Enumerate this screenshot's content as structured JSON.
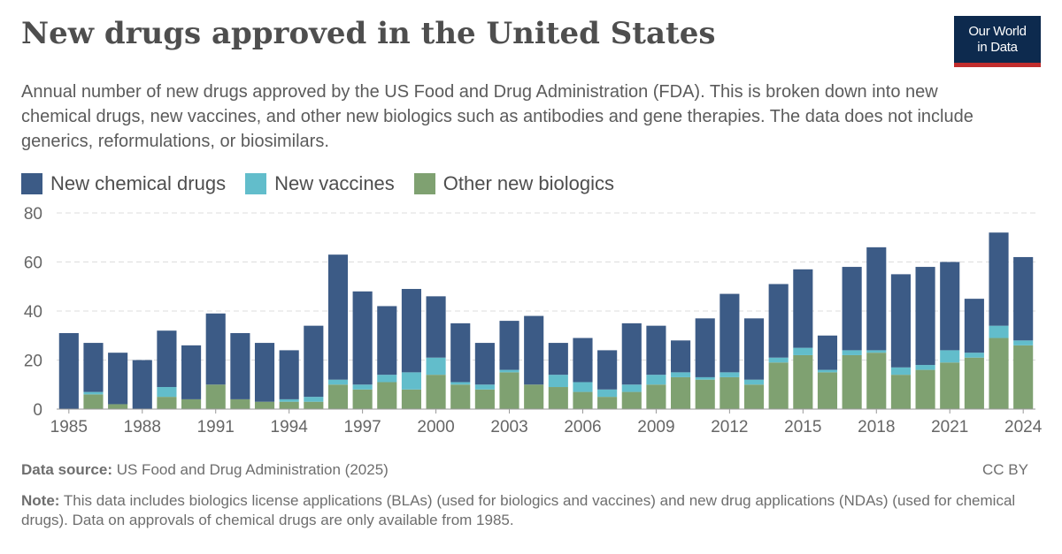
{
  "header": {
    "title": "New drugs approved in the United States",
    "subtitle": "Annual number of new drugs approved by the US Food and Drug Administration (FDA). This is broken down into new chemical drugs, new vaccines, and other new biologics such as antibodies and gene therapies. The data does not include generics, reformulations, or biosimilars.",
    "logo_line1": "Our World",
    "logo_line2": "in Data"
  },
  "footer": {
    "source_label": "Data source:",
    "source_text": "US Food and Drug Administration (2025)",
    "license": "CC BY",
    "note_label": "Note:",
    "note_text": "This data includes biologics license applications (BLAs) (used for biologics and vaccines) and new drug applications (NDAs) (used for chemical drugs). Data on approvals of chemical drugs are only available from 1985."
  },
  "colors": {
    "chemical": "#3c5b86",
    "vaccines": "#62bdcb",
    "biologics": "#7fa171",
    "grid": "#dddddd",
    "axis_text": "#666666"
  },
  "chart_data": {
    "type": "bar",
    "stacked": true,
    "x": [
      1985,
      1986,
      1987,
      1988,
      1989,
      1990,
      1991,
      1992,
      1993,
      1994,
      1995,
      1996,
      1997,
      1998,
      1999,
      2000,
      2001,
      2002,
      2003,
      2004,
      2005,
      2006,
      2007,
      2008,
      2009,
      2010,
      2011,
      2012,
      2013,
      2014,
      2015,
      2016,
      2017,
      2018,
      2019,
      2020,
      2021,
      2022,
      2023,
      2024
    ],
    "x_ticks": [
      "1985",
      "1988",
      "1991",
      "1994",
      "1997",
      "2000",
      "2003",
      "2006",
      "2009",
      "2012",
      "2015",
      "2018",
      "2021",
      "2024"
    ],
    "y_ticks": [
      "0",
      "20",
      "40",
      "60",
      "80"
    ],
    "ylim": [
      0,
      80
    ],
    "grid": true,
    "legend_position": "top-left",
    "series": [
      {
        "name": "Other new biologics",
        "key": "biologics",
        "values": [
          0,
          6,
          2,
          0,
          5,
          4,
          10,
          4,
          3,
          3,
          3,
          10,
          8,
          11,
          8,
          14,
          10,
          8,
          15,
          10,
          9,
          7,
          5,
          7,
          10,
          13,
          12,
          13,
          10,
          19,
          22,
          15,
          22,
          23,
          14,
          16,
          19,
          21,
          29,
          26
        ]
      },
      {
        "name": "New vaccines",
        "key": "vaccines",
        "values": [
          0,
          1,
          0,
          0,
          4,
          0,
          0,
          0,
          0,
          1,
          2,
          2,
          2,
          3,
          7,
          7,
          1,
          2,
          1,
          0,
          5,
          4,
          3,
          3,
          4,
          2,
          1,
          2,
          2,
          2,
          3,
          1,
          2,
          1,
          3,
          2,
          5,
          2,
          5,
          2
        ]
      },
      {
        "name": "New chemical drugs",
        "key": "chemical",
        "values": [
          31,
          20,
          21,
          20,
          23,
          22,
          29,
          27,
          24,
          20,
          29,
          51,
          38,
          28,
          34,
          25,
          24,
          17,
          20,
          28,
          13,
          18,
          16,
          25,
          20,
          13,
          24,
          32,
          25,
          30,
          32,
          14,
          34,
          42,
          38,
          40,
          36,
          22,
          38,
          34
        ]
      }
    ]
  }
}
